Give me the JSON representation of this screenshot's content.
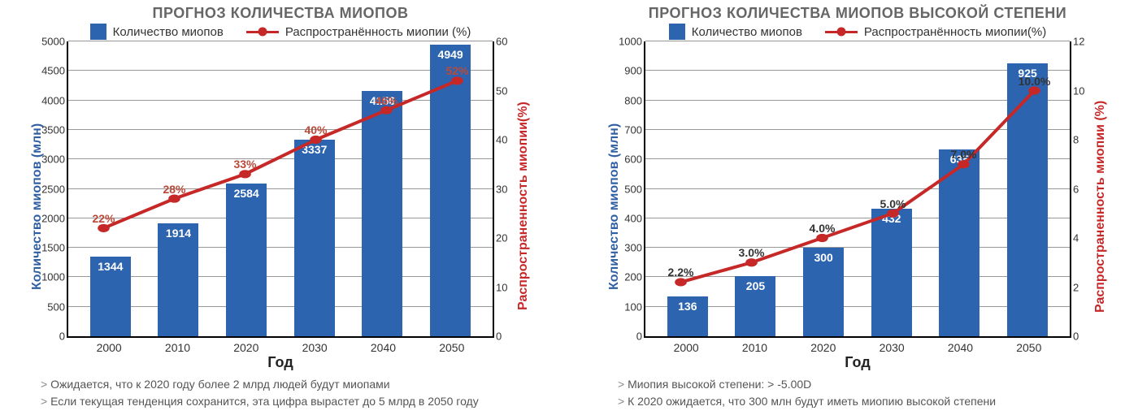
{
  "colors": {
    "bar": "#2d64b0",
    "line": "#c62828",
    "marker": "#c62828",
    "grid": "#999999",
    "title": "#666666",
    "yleft": "#2e5fa3",
    "yright": "#c62828",
    "pct1": "#b94a3a",
    "pct2": "#333333"
  },
  "legend": {
    "bars": "Количество миопов",
    "line": "Распространённость миопии (%)",
    "line2": "Распространённость миопии(%)"
  },
  "xlabel": "Год",
  "chart1": {
    "title": "ПРОГНОЗ КОЛИЧЕСТВА МИОПОВ",
    "ylabel_left": "Количество миопов (млн)",
    "ylabel_right": "Распространенность миопии(%)",
    "y_left": {
      "min": 0,
      "max": 5000,
      "step": 500
    },
    "y_right": {
      "min": 0,
      "max": 60,
      "step": 10
    },
    "categories": [
      "2000",
      "2010",
      "2020",
      "2030",
      "2040",
      "2050"
    ],
    "bars": [
      1344,
      1914,
      2584,
      3337,
      4156,
      4949
    ],
    "line_pct": [
      22,
      28,
      33,
      40,
      46,
      52
    ],
    "pct_labels": [
      "22%",
      "28%",
      "33%",
      "40%",
      "46%",
      "52%"
    ],
    "notes": [
      "Ожидается, что к 2020 году более 2 млрд людей будут миопами",
      "Если текущая тенденция сохранится, эта цифра вырастет до 5 млрд в 2050 году"
    ]
  },
  "chart2": {
    "title": "ПРОГНОЗ КОЛИЧЕСТВА МИОПОВ ВЫСОКОЙ СТЕПЕНИ",
    "ylabel_left": "Количество миопов (млн)",
    "ylabel_right": "Распространенность миопии (%)",
    "y_left": {
      "min": 0,
      "max": 1000,
      "step": 100
    },
    "y_right": {
      "min": 0,
      "max": 12,
      "step": 2
    },
    "categories": [
      "2000",
      "2010",
      "2020",
      "2030",
      "2040",
      "2050"
    ],
    "bars": [
      136,
      205,
      300,
      432,
      635,
      925
    ],
    "line_pct": [
      2.2,
      3.0,
      4.0,
      5.0,
      7.0,
      10.0
    ],
    "pct_labels": [
      "2.2%",
      "3.0%",
      "4.0%",
      "5.0%",
      "7.0%",
      "10.0%"
    ],
    "notes": [
      "Миопия высокой степени: > -5.00D",
      "К 2020 ожидается, что 300 млн будут иметь миопию высокой степени"
    ]
  }
}
